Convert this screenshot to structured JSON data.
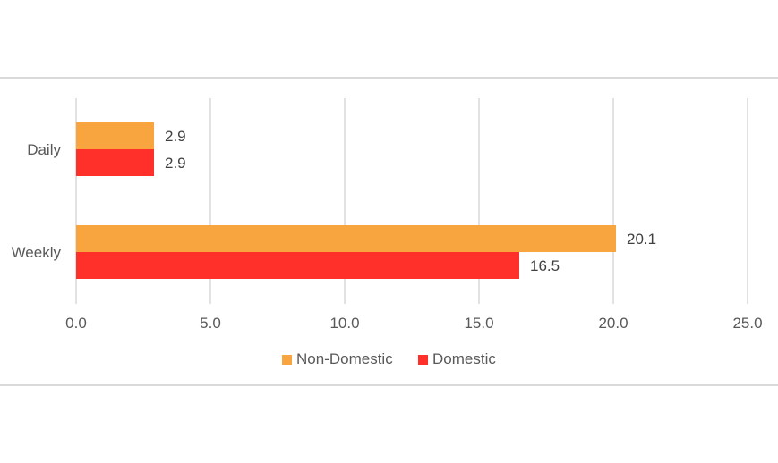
{
  "chart_data": {
    "type": "bar",
    "orientation": "horizontal",
    "categories": [
      "Daily",
      "Weekly"
    ],
    "series": [
      {
        "name": "Non-Domestic",
        "values": [
          2.9,
          20.1
        ],
        "color": "#f9a53f"
      },
      {
        "name": "Domestic",
        "values": [
          2.9,
          16.5
        ],
        "color": "#ff2f2a"
      }
    ],
    "xlim": [
      0,
      25
    ],
    "x_ticks": [
      "0.0",
      "5.0",
      "10.0",
      "15.0",
      "20.0",
      "25.0"
    ],
    "data_labels": true,
    "grid": true,
    "legend_position": "bottom",
    "title": "",
    "xlabel": "",
    "ylabel": ""
  }
}
